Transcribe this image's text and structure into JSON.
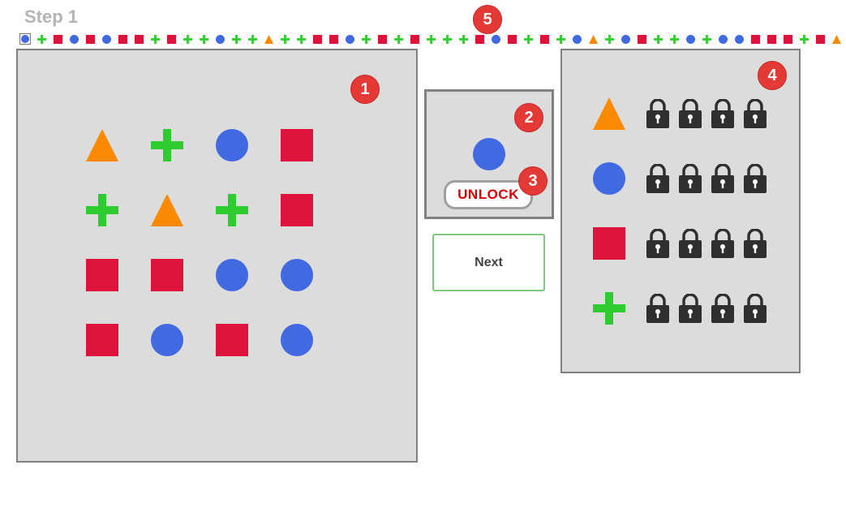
{
  "step_title": "Step 1",
  "colors": {
    "triangle": "#fb8a00",
    "plus": "#2ecc2e",
    "circle": "#4169e1",
    "square": "#dc143c",
    "panel_bg": "#dcdcdc",
    "badge": "#e53935",
    "unlock_text": "#e00000",
    "lock": "#2f2f2f"
  },
  "sequence": [
    "circle",
    "plus",
    "square",
    "circle",
    "square",
    "circle",
    "square",
    "square",
    "plus",
    "square",
    "plus",
    "plus",
    "circle",
    "plus",
    "plus",
    "triangle",
    "plus",
    "plus",
    "square",
    "square",
    "circle",
    "plus",
    "square",
    "plus",
    "square",
    "plus",
    "plus",
    "plus",
    "square",
    "circle",
    "square",
    "plus",
    "square",
    "plus",
    "circle",
    "triangle",
    "plus",
    "circle",
    "square",
    "plus",
    "plus",
    "circle",
    "plus",
    "circle",
    "circle",
    "square",
    "square",
    "square",
    "plus",
    "square",
    "triangle"
  ],
  "board": [
    [
      "triangle",
      "plus",
      "circle",
      "square"
    ],
    [
      "plus",
      "triangle",
      "plus",
      "square"
    ],
    [
      "square",
      "square",
      "circle",
      "circle"
    ],
    [
      "square",
      "circle",
      "square",
      "circle"
    ]
  ],
  "preview_shape": "circle",
  "unlock_label": "UNLOCK",
  "next_label": "Next",
  "legend": [
    {
      "shape": "triangle",
      "locks": 4
    },
    {
      "shape": "circle",
      "locks": 4
    },
    {
      "shape": "square",
      "locks": 4
    },
    {
      "shape": "plus",
      "locks": 4
    }
  ],
  "badges": {
    "board": "1",
    "preview": "2",
    "unlock": "3",
    "legend": "4",
    "sequence": "5"
  }
}
